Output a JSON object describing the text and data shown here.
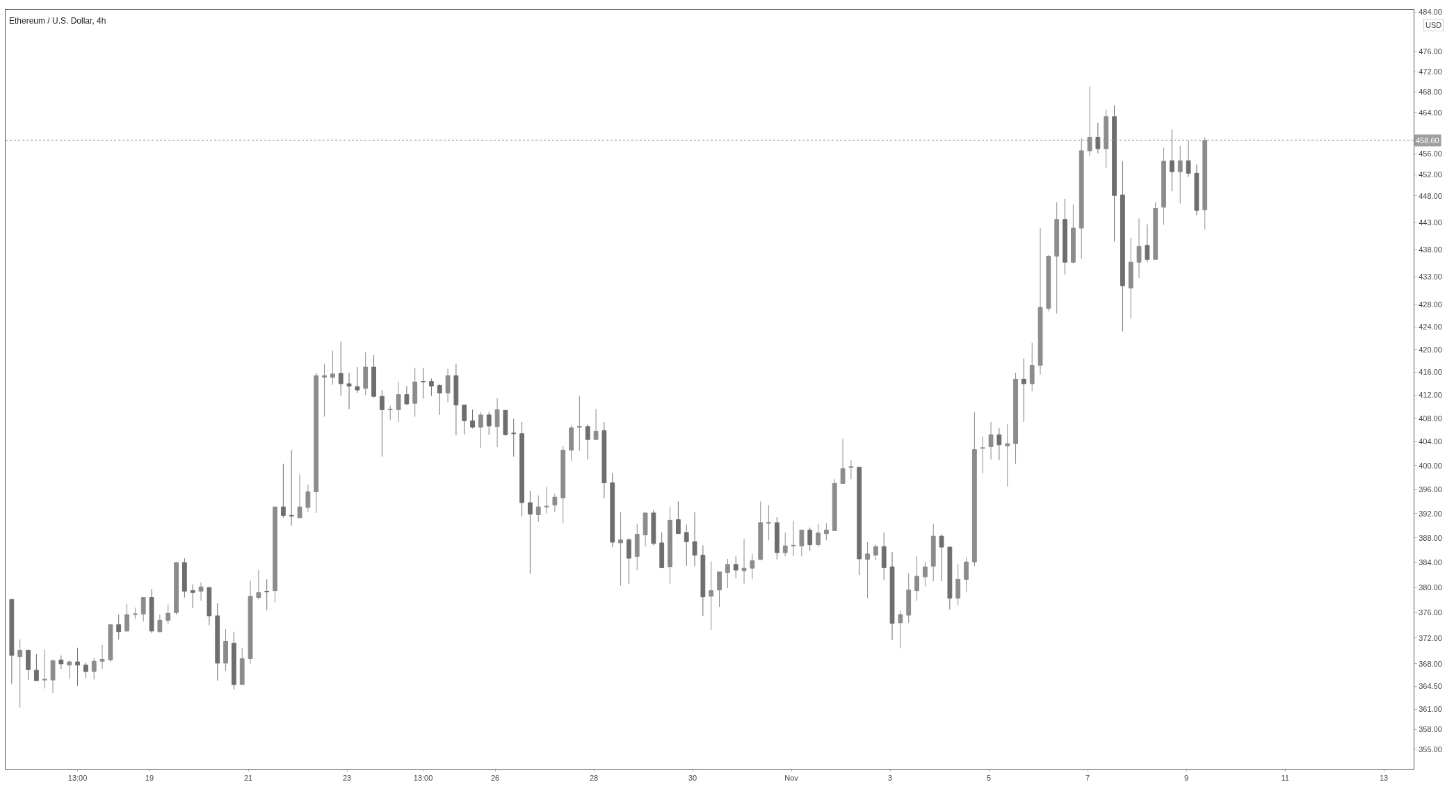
{
  "chart_data": {
    "type": "candlestick",
    "title": "Ethereum / U.S. Dollar, 4h",
    "x": [
      "--10-16T05:00",
      "--10-16T09:00",
      "--10-16T13:00",
      "--10-16T17:00",
      "--10-16T21:00",
      "--10-17T01:00",
      "--10-17T05:00",
      "--10-17T09:00",
      "--10-17T13:00",
      "--10-17T17:00",
      "--10-17T21:00",
      "--10-18T01:00",
      "--10-18T05:00",
      "--10-18T09:00",
      "--10-18T13:00",
      "--10-18T17:00",
      "--10-18T21:00",
      "--10-19T01:00",
      "--10-19T05:00",
      "--10-19T09:00",
      "--10-19T13:00",
      "--10-19T17:00",
      "--10-19T21:00",
      "--10-20T01:00",
      "--10-20T05:00",
      "--10-20T09:00",
      "--10-20T13:00",
      "--10-20T17:00",
      "--10-20T21:00",
      "--10-21T01:00",
      "--10-21T05:00",
      "--10-21T09:00",
      "--10-21T13:00",
      "--10-21T17:00",
      "--10-21T21:00",
      "--10-22T01:00",
      "--10-22T05:00",
      "--10-22T09:00",
      "--10-22T13:00",
      "--10-22T17:00",
      "--10-22T21:00",
      "--10-23T01:00",
      "--10-23T05:00",
      "--10-23T09:00",
      "--10-23T13:00",
      "--10-23T17:00",
      "--10-23T21:00",
      "--10-24T01:00",
      "--10-24T05:00",
      "--10-24T09:00",
      "--10-24T13:00",
      "--10-24T17:00",
      "--10-24T21:00",
      "--10-25T01:00",
      "--10-25T05:00",
      "--10-25T09:00",
      "--10-25T13:00",
      "--10-25T17:00",
      "--10-25T21:00",
      "--10-26T01:00",
      "--10-26T05:00",
      "--10-26T09:00",
      "--10-26T13:00",
      "--10-26T17:00",
      "--10-26T21:00",
      "--10-27T01:00",
      "--10-27T05:00",
      "--10-27T09:00",
      "--10-27T13:00",
      "--10-27T17:00",
      "--10-27T21:00",
      "--10-28T01:00",
      "--10-28T05:00",
      "--10-28T09:00",
      "--10-28T13:00",
      "--10-28T17:00",
      "--10-28T21:00",
      "--10-29T01:00",
      "--10-29T05:00",
      "--10-29T09:00",
      "--10-29T13:00",
      "--10-29T17:00",
      "--10-29T21:00",
      "--10-30T01:00",
      "--10-30T05:00",
      "--10-30T09:00",
      "--10-30T13:00",
      "--10-30T17:00",
      "--10-30T21:00",
      "--10-31T01:00",
      "--10-31T05:00",
      "--10-31T09:00",
      "--10-31T13:00",
      "--10-31T17:00",
      "--10-31T21:00",
      "--11-01T01:00",
      "--11-01T05:00",
      "--11-01T09:00",
      "--11-01T13:00",
      "--11-01T17:00",
      "--11-01T21:00",
      "--11-02T01:00",
      "--11-02T05:00",
      "--11-02T09:00",
      "--11-02T13:00",
      "--11-02T17:00",
      "--11-02T21:00",
      "--11-03T01:00",
      "--11-03T05:00",
      "--11-03T09:00",
      "--11-03T13:00",
      "--11-03T17:00",
      "--11-03T21:00",
      "--11-04T01:00",
      "--11-04T05:00",
      "--11-04T09:00",
      "--11-04T13:00",
      "--11-04T17:00",
      "--11-04T21:00",
      "--11-05T01:00",
      "--11-05T05:00",
      "--11-05T09:00",
      "--11-05T13:00",
      "--11-05T17:00",
      "--11-05T21:00",
      "--11-06T01:00",
      "--11-06T05:00",
      "--11-06T09:00",
      "--11-06T13:00",
      "--11-06T17:00",
      "--11-06T21:00",
      "--11-07T01:00",
      "--11-07T05:00",
      "--11-07T09:00",
      "--11-07T13:00",
      "--11-07T17:00",
      "--11-07T21:00",
      "--11-08T01:00",
      "--11-08T05:00",
      "--11-08T09:00",
      "--11-08T13:00",
      "--11-08T17:00",
      "--11-08T21:00",
      "--11-09T01:00",
      "--11-09T05:00",
      "--11-09T09:00"
    ],
    "ohlc": [
      [
        378.1,
        378.1,
        364.9,
        369.3
      ],
      [
        369.1,
        371.8,
        361.3,
        370.1
      ],
      [
        370.1,
        370.2,
        365.5,
        367.1
      ],
      [
        367.0,
        369.5,
        365.4,
        365.4
      ],
      [
        365.5,
        370.2,
        364.2,
        365.6
      ],
      [
        365.5,
        368.6,
        363.5,
        368.5
      ],
      [
        368.6,
        369.3,
        367.2,
        368.0
      ],
      [
        367.8,
        368.5,
        365.7,
        368.3
      ],
      [
        368.3,
        370.5,
        364.6,
        367.8
      ],
      [
        367.8,
        368.2,
        365.8,
        366.8
      ],
      [
        366.8,
        368.9,
        365.6,
        368.4
      ],
      [
        368.4,
        370.9,
        367.2,
        368.7
      ],
      [
        368.6,
        374.2,
        368.3,
        374.1
      ],
      [
        374.1,
        375.7,
        371.8,
        373.0
      ],
      [
        373.1,
        377.4,
        373.0,
        375.7
      ],
      [
        375.7,
        376.8,
        375.0,
        375.8
      ],
      [
        375.8,
        378.4,
        374.6,
        378.4
      ],
      [
        378.4,
        379.8,
        372.8,
        373.1
      ],
      [
        373.0,
        375.7,
        372.9,
        374.8
      ],
      [
        374.8,
        377.3,
        374.2,
        375.9
      ],
      [
        376.0,
        384.1,
        375.7,
        384.0
      ],
      [
        384.0,
        384.7,
        378.4,
        379.4
      ],
      [
        379.5,
        380.5,
        376.7,
        379.2
      ],
      [
        379.4,
        380.8,
        377.9,
        380.1
      ],
      [
        380.0,
        380.1,
        374.0,
        375.5
      ],
      [
        375.5,
        377.5,
        365.4,
        368.1
      ],
      [
        368.1,
        373.4,
        366.9,
        371.5
      ],
      [
        371.2,
        373.0,
        364.0,
        364.8
      ],
      [
        364.8,
        370.5,
        364.8,
        368.8
      ],
      [
        368.8,
        381.1,
        368.0,
        378.6
      ],
      [
        378.4,
        382.8,
        378.1,
        379.2
      ],
      [
        379.4,
        381.3,
        376.4,
        379.3
      ],
      [
        379.5,
        393.1,
        377.6,
        393.1
      ],
      [
        393.1,
        400.3,
        391.3,
        391.7
      ],
      [
        391.7,
        402.6,
        390.0,
        391.6
      ],
      [
        391.3,
        398.5,
        391.3,
        393.1
      ],
      [
        393.0,
        396.8,
        392.3,
        395.6
      ],
      [
        395.6,
        415.9,
        392.1,
        415.4
      ],
      [
        415.1,
        417.4,
        408.3,
        415.4
      ],
      [
        415.1,
        419.8,
        413.8,
        415.7
      ],
      [
        415.8,
        421.4,
        411.9,
        414.0
      ],
      [
        414.0,
        415.9,
        409.6,
        413.6
      ],
      [
        413.5,
        416.9,
        412.4,
        412.9
      ],
      [
        413.2,
        419.5,
        412.0,
        416.9
      ],
      [
        416.9,
        419.0,
        411.6,
        411.8
      ],
      [
        411.8,
        412.9,
        401.5,
        409.5
      ],
      [
        409.5,
        410.2,
        407.7,
        409.6
      ],
      [
        409.5,
        414.3,
        407.4,
        412.1
      ],
      [
        412.1,
        413.6,
        410.3,
        410.5
      ],
      [
        410.6,
        416.8,
        408.3,
        414.3
      ],
      [
        414.4,
        416.8,
        411.4,
        414.3
      ],
      [
        414.4,
        414.9,
        411.9,
        413.6
      ],
      [
        413.7,
        413.9,
        408.6,
        412.4
      ],
      [
        412.4,
        416.6,
        410.8,
        415.4
      ],
      [
        415.4,
        417.5,
        405.1,
        410.3
      ],
      [
        410.3,
        410.3,
        405.3,
        407.6
      ],
      [
        407.6,
        409.5,
        406.3,
        406.5
      ],
      [
        406.5,
        409.1,
        402.9,
        408.6
      ],
      [
        408.6,
        409.1,
        405.2,
        406.7
      ],
      [
        406.6,
        411.5,
        403.1,
        409.5
      ],
      [
        409.4,
        409.4,
        405.0,
        405.2
      ],
      [
        405.5,
        407.9,
        401.5,
        405.4
      ],
      [
        405.4,
        407.4,
        391.5,
        393.8
      ],
      [
        393.8,
        395.8,
        382.2,
        391.9
      ],
      [
        391.8,
        395.0,
        390.6,
        393.1
      ],
      [
        393.1,
        396.4,
        392.0,
        393.2
      ],
      [
        393.4,
        395.3,
        392.3,
        394.7
      ],
      [
        394.6,
        403.3,
        390.4,
        402.6
      ],
      [
        402.6,
        406.9,
        400.8,
        406.4
      ],
      [
        406.5,
        411.9,
        402.5,
        406.6
      ],
      [
        406.6,
        407.0,
        401.0,
        404.4
      ],
      [
        404.4,
        409.6,
        404.4,
        405.8
      ],
      [
        405.9,
        407.4,
        394.5,
        397.1
      ],
      [
        397.1,
        398.7,
        386.5,
        387.3
      ],
      [
        387.2,
        392.2,
        380.3,
        387.7
      ],
      [
        387.7,
        388.0,
        380.6,
        384.7
      ],
      [
        385.0,
        390.3,
        382.8,
        388.6
      ],
      [
        388.5,
        392.1,
        386.6,
        392.1
      ],
      [
        392.1,
        392.6,
        386.8,
        387.1
      ],
      [
        387.2,
        388.9,
        383.1,
        383.2
      ],
      [
        383.3,
        393.1,
        380.6,
        390.9
      ],
      [
        391.0,
        394.0,
        388.7,
        388.7
      ],
      [
        388.9,
        390.2,
        383.5,
        387.4
      ],
      [
        387.4,
        392.2,
        383.4,
        385.2
      ],
      [
        385.2,
        386.8,
        375.5,
        378.5
      ],
      [
        378.6,
        384.2,
        373.3,
        379.5
      ],
      [
        379.6,
        382.5,
        376.9,
        382.5
      ],
      [
        382.4,
        384.6,
        379.9,
        383.7
      ],
      [
        383.7,
        385.0,
        381.5,
        382.8
      ],
      [
        382.7,
        387.8,
        380.6,
        383.1
      ],
      [
        383.1,
        385.4,
        381.3,
        384.3
      ],
      [
        384.5,
        394.0,
        384.4,
        390.5
      ],
      [
        390.4,
        393.4,
        387.6,
        390.5
      ],
      [
        390.5,
        391.4,
        384.5,
        385.6
      ],
      [
        385.6,
        388.9,
        385.0,
        386.7
      ],
      [
        386.7,
        390.8,
        385.0,
        386.8
      ],
      [
        386.7,
        389.3,
        385.0,
        389.3
      ],
      [
        389.3,
        389.7,
        385.9,
        386.9
      ],
      [
        386.9,
        390.3,
        386.5,
        388.8
      ],
      [
        388.7,
        390.4,
        387.6,
        389.3
      ],
      [
        389.2,
        397.7,
        389.2,
        397.0
      ],
      [
        397.0,
        404.5,
        397.0,
        399.5
      ],
      [
        399.7,
        400.9,
        397.7,
        399.8
      ],
      [
        399.7,
        399.7,
        382.0,
        384.6
      ],
      [
        384.5,
        387.3,
        378.3,
        385.4
      ],
      [
        385.2,
        386.9,
        384.4,
        386.6
      ],
      [
        386.6,
        388.9,
        381.2,
        383.2
      ],
      [
        383.3,
        385.7,
        371.7,
        374.3
      ],
      [
        374.4,
        376.3,
        370.4,
        375.7
      ],
      [
        375.6,
        382.3,
        374.4,
        379.6
      ],
      [
        379.5,
        385.0,
        377.9,
        381.8
      ],
      [
        381.7,
        384.1,
        380.2,
        383.3
      ],
      [
        383.4,
        390.3,
        381.0,
        388.3
      ],
      [
        388.3,
        388.6,
        381.0,
        386.5
      ],
      [
        386.5,
        386.6,
        376.5,
        378.3
      ],
      [
        378.3,
        383.7,
        377.1,
        381.3
      ],
      [
        381.3,
        384.8,
        379.3,
        384.1
      ],
      [
        384.1,
        409.1,
        383.4,
        402.7
      ],
      [
        402.9,
        404.9,
        398.7,
        403.0
      ],
      [
        403.2,
        407.4,
        401.0,
        405.2
      ],
      [
        405.2,
        406.3,
        400.9,
        403.5
      ],
      [
        403.3,
        407.0,
        396.5,
        403.7
      ],
      [
        403.7,
        415.9,
        400.3,
        414.8
      ],
      [
        414.8,
        418.4,
        407.4,
        414.0
      ],
      [
        414.0,
        421.2,
        412.7,
        417.2
      ],
      [
        417.2,
        442.0,
        415.6,
        427.5
      ],
      [
        427.3,
        437.0,
        426.8,
        436.8
      ],
      [
        436.8,
        446.8,
        426.4,
        443.6
      ],
      [
        443.6,
        447.5,
        433.4,
        435.7
      ],
      [
        435.7,
        446.4,
        435.5,
        442.0
      ],
      [
        442.0,
        459.0,
        436.3,
        456.6
      ],
      [
        456.6,
        469.1,
        455.6,
        459.2
      ],
      [
        459.2,
        462.0,
        456.1,
        457.0
      ],
      [
        457.0,
        464.6,
        453.3,
        463.2
      ],
      [
        463.2,
        465.4,
        439.5,
        448.1
      ],
      [
        448.2,
        454.6,
        423.2,
        431.4
      ],
      [
        431.0,
        440.2,
        425.5,
        435.7
      ],
      [
        435.7,
        443.8,
        432.8,
        438.6
      ],
      [
        438.8,
        442.7,
        435.7,
        436.2
      ],
      [
        436.2,
        446.8,
        436.2,
        445.7
      ],
      [
        445.9,
        457.2,
        442.6,
        454.6
      ],
      [
        454.7,
        460.7,
        448.9,
        452.6
      ],
      [
        452.6,
        457.5,
        446.6,
        454.7
      ],
      [
        454.7,
        458.5,
        451.6,
        452.3
      ],
      [
        452.3,
        454.0,
        444.4,
        445.3
      ],
      [
        445.4,
        459.2,
        441.7,
        458.6
      ]
    ],
    "colors": [
      "#6e6e6e",
      "#8c8c8c",
      "#6e6e6e",
      "#6e6e6e",
      "#8c8c8c",
      "#8c8c8c",
      "#6e6e6e",
      "#8c8c8c",
      "#6e6e6e",
      "#6e6e6e",
      "#8c8c8c",
      "#8c8c8c",
      "#8c8c8c",
      "#6e6e6e",
      "#8c8c8c",
      "#8c8c8c",
      "#8c8c8c",
      "#6e6e6e",
      "#8c8c8c",
      "#8c8c8c",
      "#8c8c8c",
      "#6e6e6e",
      "#6e6e6e",
      "#8c8c8c",
      "#6e6e6e",
      "#6e6e6e",
      "#8c8c8c",
      "#6e6e6e",
      "#8c8c8c",
      "#8c8c8c",
      "#8c8c8c",
      "#6e6e6e",
      "#8c8c8c",
      "#6e6e6e",
      "#6e6e6e",
      "#8c8c8c",
      "#8c8c8c",
      "#8c8c8c",
      "#8c8c8c",
      "#8c8c8c",
      "#6e6e6e",
      "#6e6e6e",
      "#6e6e6e",
      "#8c8c8c",
      "#6e6e6e",
      "#6e6e6e",
      "#8c8c8c",
      "#8c8c8c",
      "#6e6e6e",
      "#8c8c8c",
      "#6e6e6e",
      "#6e6e6e",
      "#6e6e6e",
      "#8c8c8c",
      "#6e6e6e",
      "#6e6e6e",
      "#6e6e6e",
      "#8c8c8c",
      "#6e6e6e",
      "#8c8c8c",
      "#6e6e6e",
      "#6e6e6e",
      "#6e6e6e",
      "#6e6e6e",
      "#8c8c8c",
      "#8c8c8c",
      "#8c8c8c",
      "#8c8c8c",
      "#8c8c8c",
      "#8c8c8c",
      "#6e6e6e",
      "#8c8c8c",
      "#6e6e6e",
      "#6e6e6e",
      "#8c8c8c",
      "#6e6e6e",
      "#8c8c8c",
      "#8c8c8c",
      "#6e6e6e",
      "#6e6e6e",
      "#8c8c8c",
      "#6e6e6e",
      "#6e6e6e",
      "#6e6e6e",
      "#6e6e6e",
      "#8c8c8c",
      "#8c8c8c",
      "#8c8c8c",
      "#6e6e6e",
      "#8c8c8c",
      "#8c8c8c",
      "#8c8c8c",
      "#8c8c8c",
      "#6e6e6e",
      "#8c8c8c",
      "#8c8c8c",
      "#8c8c8c",
      "#6e6e6e",
      "#8c8c8c",
      "#8c8c8c",
      "#8c8c8c",
      "#8c8c8c",
      "#8c8c8c",
      "#6e6e6e",
      "#8c8c8c",
      "#8c8c8c",
      "#6e6e6e",
      "#6e6e6e",
      "#8c8c8c",
      "#8c8c8c",
      "#8c8c8c",
      "#8c8c8c",
      "#8c8c8c",
      "#6e6e6e",
      "#6e6e6e",
      "#8c8c8c",
      "#8c8c8c",
      "#8c8c8c",
      "#8c8c8c",
      "#8c8c8c",
      "#6e6e6e",
      "#8c8c8c",
      "#8c8c8c",
      "#6e6e6e",
      "#8c8c8c",
      "#8c8c8c",
      "#8c8c8c",
      "#8c8c8c",
      "#6e6e6e",
      "#8c8c8c",
      "#8c8c8c",
      "#8c8c8c",
      "#6e6e6e",
      "#8c8c8c",
      "#6e6e6e",
      "#6e6e6e",
      "#8c8c8c",
      "#8c8c8c",
      "#6e6e6e",
      "#8c8c8c",
      "#8c8c8c",
      "#6e6e6e",
      "#8c8c8c",
      "#6e6e6e",
      "#6e6e6e",
      "#8c8c8c"
    ],
    "xlim": [
      "--10-16T02:00",
      "--11-13T14:30"
    ],
    "xticks": [
      {
        "value": "--10-17T13:00",
        "label": "13:00"
      },
      {
        "value": "--10-19",
        "label": "19"
      },
      {
        "value": "--10-21",
        "label": "21"
      },
      {
        "value": "--10-23",
        "label": "23"
      },
      {
        "value": "--10-24T13:00",
        "label": "13:00"
      },
      {
        "value": "--10-26",
        "label": "26"
      },
      {
        "value": "--10-28",
        "label": "28"
      },
      {
        "value": "--10-30",
        "label": "30"
      },
      {
        "value": "--11-01",
        "label": "Nov"
      },
      {
        "value": "--11-03",
        "label": "3"
      },
      {
        "value": "--11-05",
        "label": "5"
      },
      {
        "value": "--11-07",
        "label": "7"
      },
      {
        "value": "--11-09",
        "label": "9"
      },
      {
        "value": "--11-11",
        "label": "11"
      },
      {
        "value": "--11-13",
        "label": "13"
      }
    ],
    "log": true,
    "ylim": [
      352.1,
      484.5
    ],
    "yticks": [
      {
        "value": 355,
        "label": "355.00"
      },
      {
        "value": 358,
        "label": "358.00"
      },
      {
        "value": 361,
        "label": "361.00"
      },
      {
        "value": 364.5,
        "label": "364.50"
      },
      {
        "value": 368,
        "label": "368.00"
      },
      {
        "value": 372,
        "label": "372.00"
      },
      {
        "value": 376,
        "label": "376.00"
      },
      {
        "value": 380,
        "label": "380.00"
      },
      {
        "value": 384,
        "label": "384.00"
      },
      {
        "value": 388,
        "label": "388.00"
      },
      {
        "value": 392,
        "label": "392.00"
      },
      {
        "value": 396,
        "label": "396.00"
      },
      {
        "value": 400,
        "label": "400.00"
      },
      {
        "value": 404,
        "label": "404.00"
      },
      {
        "value": 408,
        "label": "408.00"
      },
      {
        "value": 412,
        "label": "412.00"
      },
      {
        "value": 416,
        "label": "416.00"
      },
      {
        "value": 420,
        "label": "420.00"
      },
      {
        "value": 424,
        "label": "424.00"
      },
      {
        "value": 428,
        "label": "428.00"
      },
      {
        "value": 433,
        "label": "433.00"
      },
      {
        "value": 438,
        "label": "438.00"
      },
      {
        "value": 443,
        "label": "443.00"
      },
      {
        "value": 448,
        "label": "448.00"
      },
      {
        "value": 452,
        "label": "452.00"
      },
      {
        "value": 456,
        "label": "456.00"
      },
      {
        "value": 464,
        "label": "464.00"
      },
      {
        "value": 468,
        "label": "468.00"
      },
      {
        "value": 472,
        "label": "472.00"
      },
      {
        "value": 476,
        "label": "476.00"
      },
      {
        "value": 484,
        "label": "484.00"
      }
    ],
    "ref_lines": [
      {
        "axis": "y",
        "value": 458.6,
        "label": "458.60",
        "color": "#9e9e9e",
        "line_style": "dotted"
      }
    ],
    "annotations": [
      "USD"
    ]
  }
}
